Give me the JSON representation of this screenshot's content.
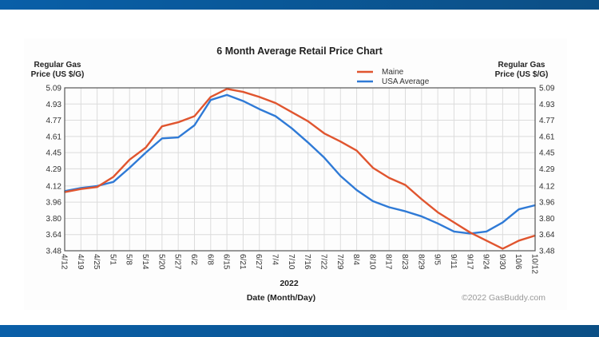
{
  "chart_data": {
    "type": "line",
    "title": "6 Month Average Retail Price Chart",
    "ylabel_left": [
      "Regular Gas",
      "Price (US $/G)"
    ],
    "ylabel_right": [
      "Regular Gas",
      "Price (US $/G)"
    ],
    "year_label": "2022",
    "xlabel": "Date (Month/Day)",
    "copyright": "©2022 GasBuddy.com",
    "ylim": [
      3.48,
      5.09
    ],
    "yticks": [
      "3.48",
      "3.64",
      "3.80",
      "3.96",
      "4.12",
      "4.29",
      "4.45",
      "4.61",
      "4.77",
      "4.93",
      "5.09"
    ],
    "categories": [
      "4/12",
      "4/19",
      "4/25",
      "5/1",
      "5/8",
      "5/14",
      "5/20",
      "5/27",
      "6/2",
      "6/8",
      "6/15",
      "6/21",
      "6/27",
      "7/4",
      "7/10",
      "7/16",
      "7/22",
      "7/29",
      "8/4",
      "8/10",
      "8/17",
      "8/23",
      "8/29",
      "9/5",
      "9/11",
      "9/17",
      "9/24",
      "9/30",
      "10/6",
      "10/12"
    ],
    "grid": true,
    "legend_placement": "top-right",
    "series": [
      {
        "name": "Maine",
        "color": "#e0552f",
        "values": [
          4.06,
          4.09,
          4.11,
          4.21,
          4.38,
          4.5,
          4.71,
          4.75,
          4.81,
          5.0,
          5.08,
          5.05,
          5.0,
          4.94,
          4.85,
          4.76,
          4.64,
          4.56,
          4.47,
          4.3,
          4.2,
          4.13,
          3.99,
          3.86,
          3.76,
          3.66,
          3.58,
          3.5,
          3.58,
          3.63
        ]
      },
      {
        "name": "USA Average",
        "color": "#2f7ad6",
        "values": [
          4.07,
          4.1,
          4.12,
          4.16,
          4.3,
          4.45,
          4.59,
          4.6,
          4.72,
          4.97,
          5.02,
          4.96,
          4.88,
          4.81,
          4.69,
          4.55,
          4.4,
          4.22,
          4.08,
          3.97,
          3.91,
          3.87,
          3.82,
          3.75,
          3.67,
          3.65,
          3.67,
          3.76,
          3.89,
          3.93
        ]
      }
    ]
  }
}
